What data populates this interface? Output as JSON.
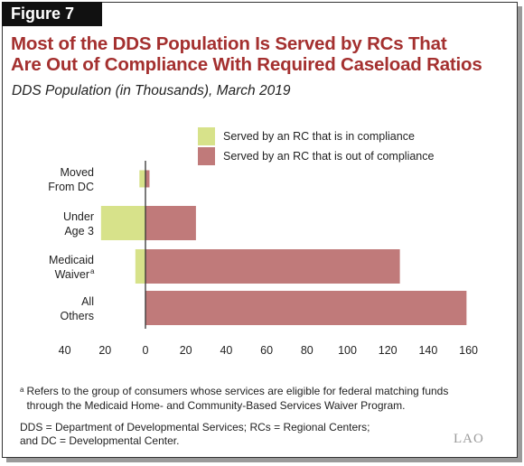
{
  "figure_label": "Figure 7",
  "title_line1": "Most of the DDS Population Is Served by RCs That",
  "title_line2": "Are Out of Compliance With Required Caseload Ratios",
  "footnote_marker": "a",
  "footnote_text": "Refers to the group of consumers whose services are eligible for federal matching funds through the Medicaid Home- and Community-Based Services Waiver Program.",
  "abbrev_line1": "DDS = Department of Developmental Services; RCs = Regional Centers;",
  "abbrev_line2": "and DC = Developmental Center.",
  "logo_text": "LAO",
  "colors": {
    "title": "#a4302f",
    "compliant": "#d7e28a",
    "noncompliant": "#c07a7a",
    "figure_tab": "#111111"
  },
  "chart_data": {
    "type": "bar",
    "orientation": "horizontal",
    "subtitle": "DDS Population (in Thousands), March 2019",
    "categories": [
      {
        "line1": "Moved",
        "line2": "From DC",
        "sup": ""
      },
      {
        "line1": "Under",
        "line2": "Age 3",
        "sup": ""
      },
      {
        "line1": "Medicaid",
        "line2": "Waiver",
        "sup": "a"
      },
      {
        "line1": "All",
        "line2": "Others",
        "sup": ""
      }
    ],
    "series": [
      {
        "name": "Served by an RC that is in compliance",
        "values": [
          3,
          22,
          5,
          0
        ],
        "direction": "left"
      },
      {
        "name": "Served by an RC that is out of compliance",
        "values": [
          2,
          25,
          126,
          159
        ],
        "direction": "right"
      }
    ],
    "xticks": [
      "40",
      "20",
      "0",
      "20",
      "40",
      "60",
      "80",
      "100",
      "120",
      "140",
      "160"
    ],
    "xlim": [
      -40,
      160
    ],
    "legend_position": "top-right",
    "grid": false
  }
}
